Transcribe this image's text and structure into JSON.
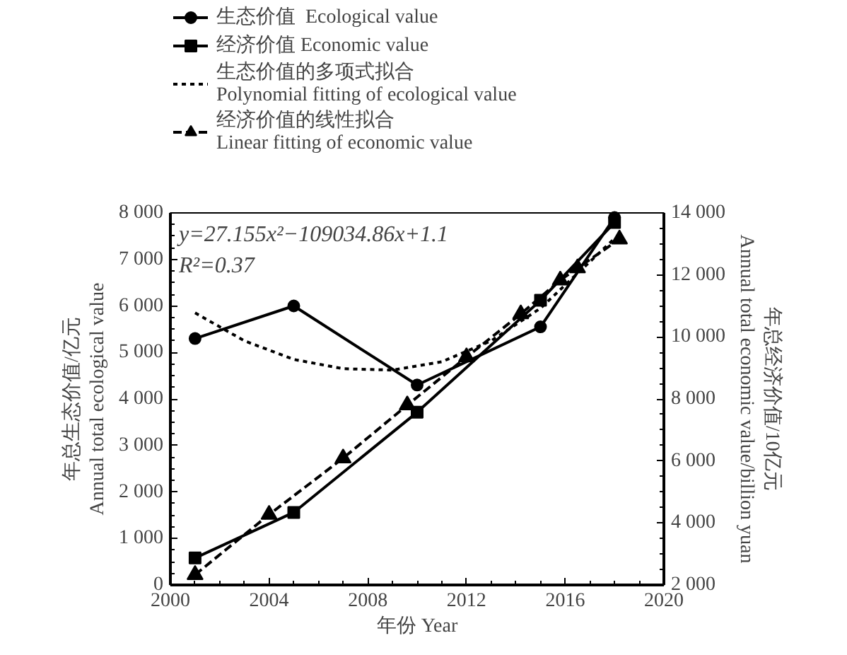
{
  "chart_data": {
    "type": "line",
    "xlabel": "年份 Year",
    "ylabel": "年总生态价值/亿元\nAnnual total ecological value",
    "y2label": "年总经济价值/10亿元\nAnnual total economic value/billion yuan",
    "xlim": [
      2000,
      2020
    ],
    "xticks": [
      2000,
      2004,
      2008,
      2012,
      2016,
      2020
    ],
    "ylim": [
      0,
      8000
    ],
    "yticks": [
      {
        "value": 0,
        "label": "0"
      },
      {
        "value": 1000,
        "label": "1 000"
      },
      {
        "value": 2000,
        "label": "2 000"
      },
      {
        "value": 3000,
        "label": "3 000"
      },
      {
        "value": 4000,
        "label": "4 000"
      },
      {
        "value": 5000,
        "label": "5 000"
      },
      {
        "value": 6000,
        "label": "6 000"
      },
      {
        "value": 7000,
        "label": "7 000"
      },
      {
        "value": 8000,
        "label": "8 000"
      }
    ],
    "y2lim": [
      2000,
      14000
    ],
    "y2ticks": [
      {
        "value": 2000,
        "label": "2 000"
      },
      {
        "value": 4000,
        "label": "4 000"
      },
      {
        "value": 6000,
        "label": "6 000"
      },
      {
        "value": 8000,
        "label": "8 000"
      },
      {
        "value": 10000,
        "label": "10 000"
      },
      {
        "value": 12000,
        "label": "12 000"
      },
      {
        "value": 14000,
        "label": "14 000"
      }
    ],
    "grid": false,
    "legend": "top",
    "annotations": [
      "y=27.155x²−109034.86x+1.1",
      "R²=0.37"
    ],
    "series": [
      {
        "name": "生态价值  Ecological value",
        "color": "#000000",
        "marker": "circle",
        "line_style": "solid",
        "x": [
          2001,
          2005,
          2010,
          2015,
          2018
        ],
        "values": [
          5300,
          6000,
          4300,
          5550,
          7900
        ]
      },
      {
        "name": "经济价值 Economic value",
        "color": "#000000",
        "marker": "square",
        "line_style": "solid",
        "axis": "y2",
        "x": [
          2001,
          2005,
          2010,
          2015,
          2018
        ],
        "values": [
          2870,
          4340,
          7570,
          11180,
          13690
        ]
      },
      {
        "name": "生态价值的多项式拟合\nPolynomial fitting of ecological value",
        "color": "#000000",
        "marker": "none",
        "line_style": "dotted",
        "x": [
          2001,
          2003,
          2005,
          2007,
          2009,
          2011,
          2013,
          2015,
          2017,
          2018
        ],
        "values": [
          5850,
          5250,
          4850,
          4650,
          4620,
          4800,
          5250,
          5950,
          6950,
          7450
        ]
      },
      {
        "name": "经济价值的线性拟合\nLinear fitting of economic value",
        "color": "#000000",
        "marker": "triangle",
        "line_style": "dashed",
        "axis": "y2",
        "x": [
          2001,
          2004,
          2007,
          2009.6,
          2012,
          2014.2,
          2015.8,
          2016.5,
          2018.2
        ],
        "values": [
          2330,
          4270,
          6090,
          7800,
          9350,
          10740,
          11830,
          12220,
          13150
        ]
      }
    ]
  }
}
